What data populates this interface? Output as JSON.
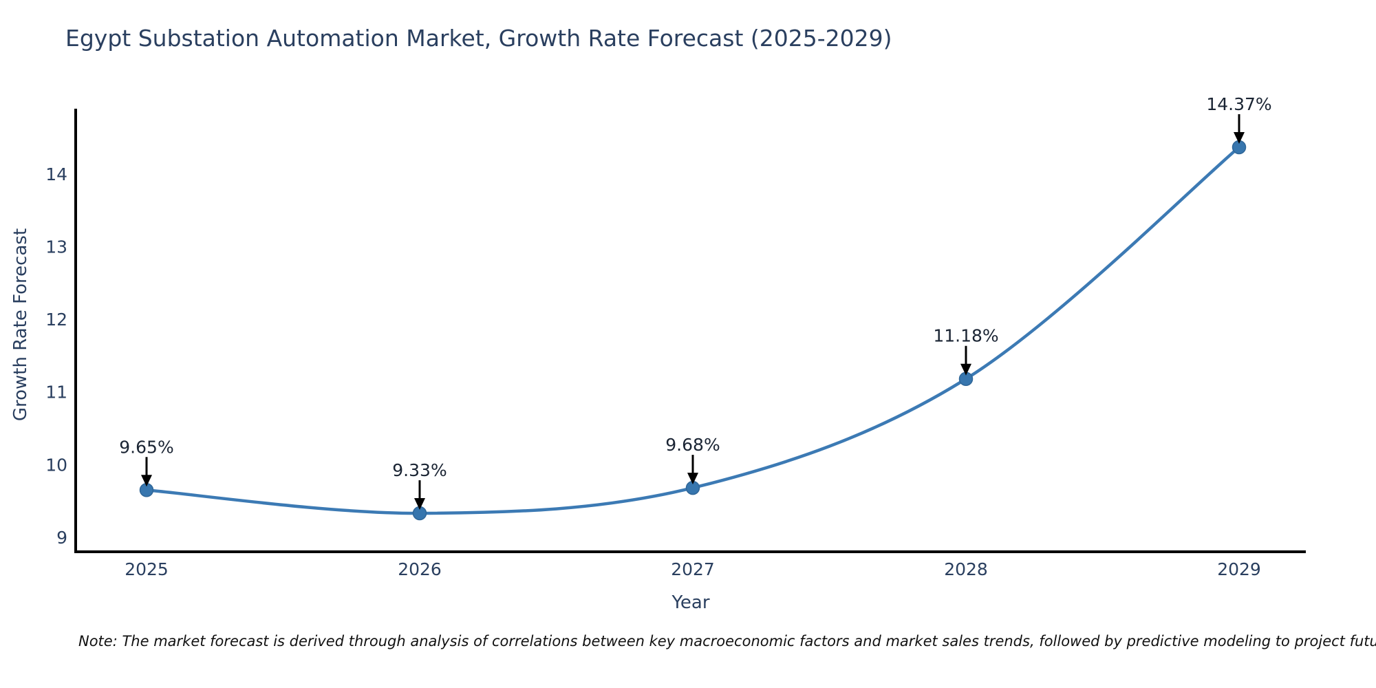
{
  "page": {
    "note": "Note: The market forecast is derived through analysis of correlations between key macroeconomic factors and market sales trends, followed by predictive modeling to project future sales"
  },
  "chart_data": {
    "type": "line",
    "title": "Egypt Substation Automation Market, Growth Rate Forecast (2025-2029)",
    "xlabel": "Year",
    "ylabel": "Growth Rate Forecast",
    "categories": [
      "2025",
      "2026",
      "2027",
      "2028",
      "2029"
    ],
    "series": [
      {
        "name": "Growth Rate Forecast",
        "values": [
          9.65,
          9.33,
          9.68,
          11.18,
          14.37
        ]
      }
    ],
    "point_labels": [
      "9.65%",
      "9.33%",
      "9.68%",
      "11.18%",
      "14.37%"
    ],
    "yticks": [
      "9",
      "10",
      "11",
      "12",
      "13",
      "14"
    ],
    "ylim": [
      8.8,
      14.9
    ],
    "grid": false,
    "legend_position": "none",
    "line_shape": "spline",
    "line_color": "#3C7AB4",
    "marker_color": "#3776AE",
    "marker_stroke": "#2F6698",
    "axis_color": "#000000",
    "text_color": "#2a3f5f",
    "annotation_text_color": "#1a2433",
    "annotation_arrow_color": "#000000"
  }
}
